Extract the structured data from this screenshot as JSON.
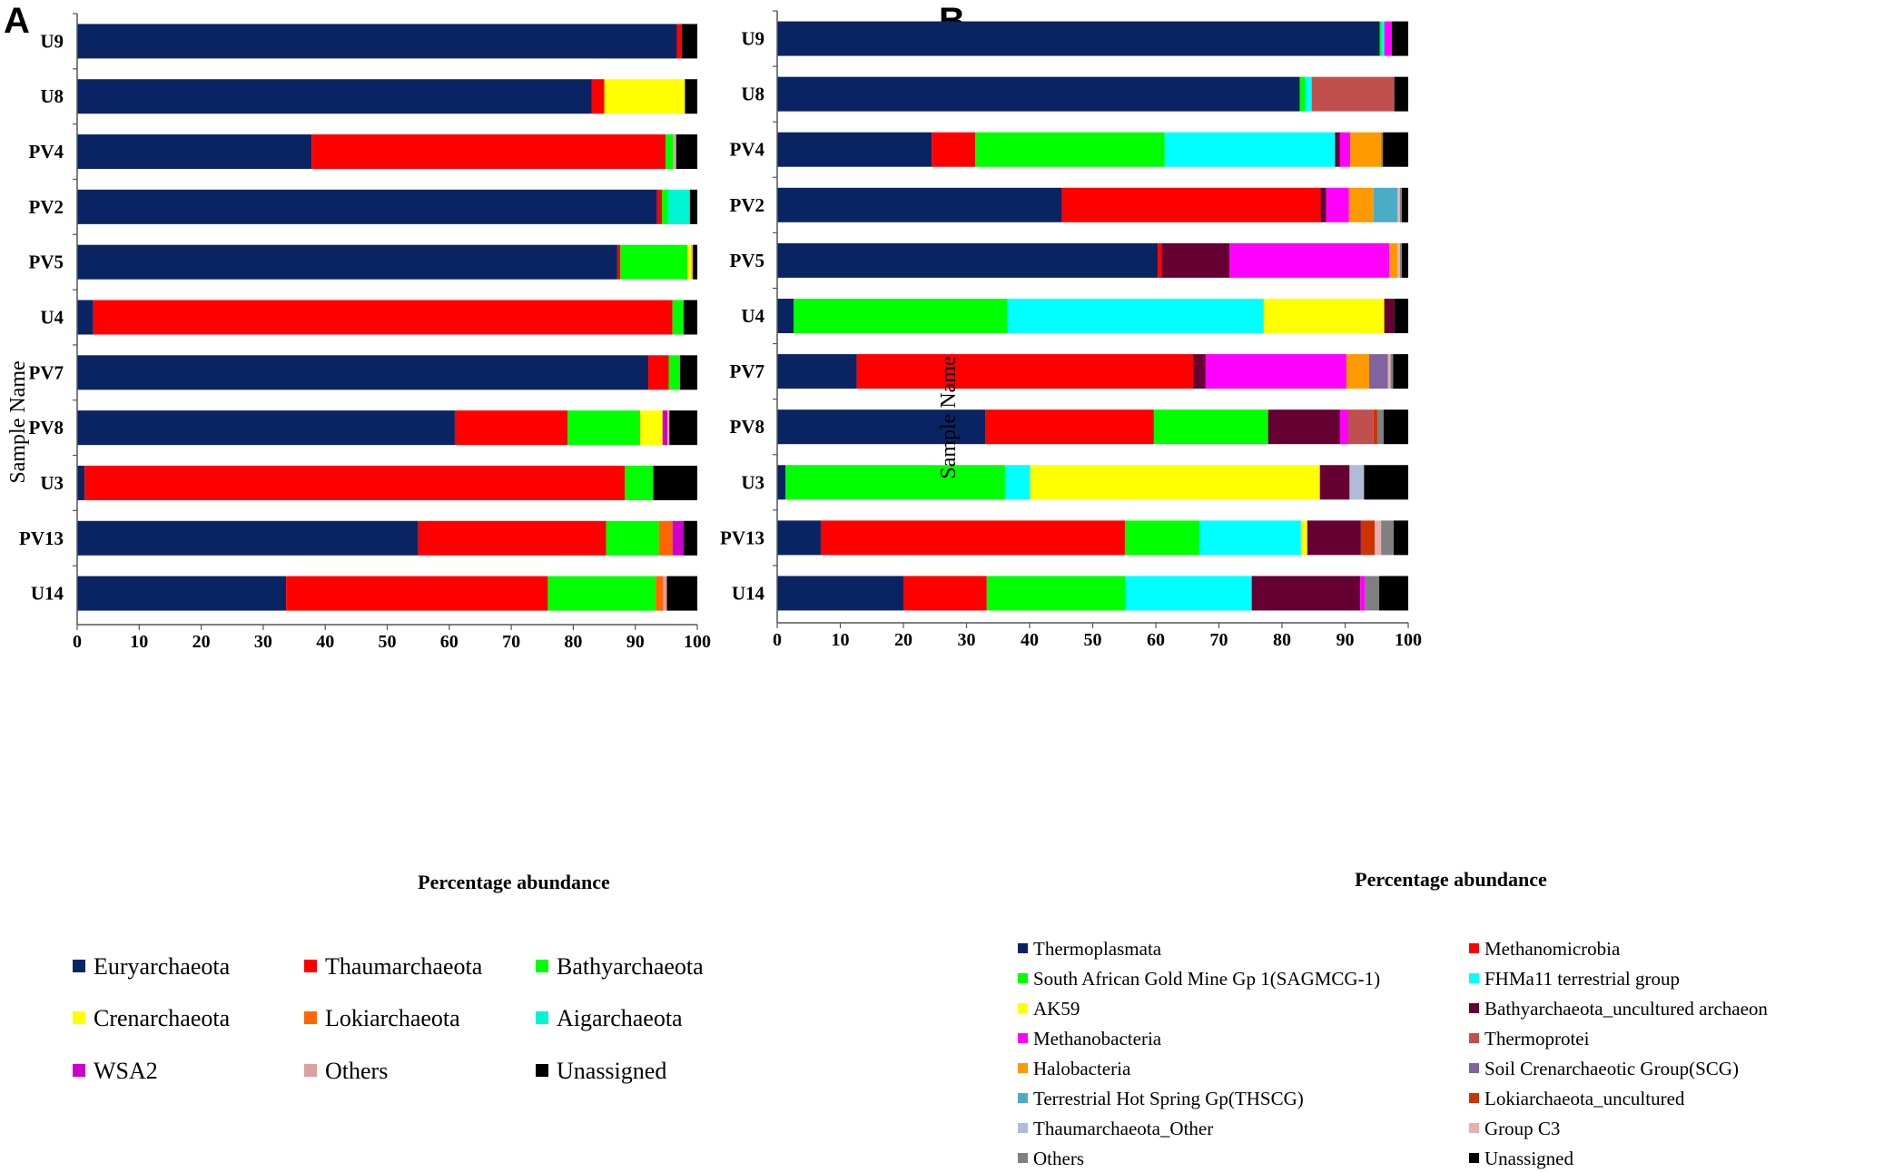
{
  "chart_data": [
    {
      "type": "bar",
      "orientation": "horizontal",
      "stacked": true,
      "panel_label": "A",
      "xlabel": "Percentage abundance",
      "ylabel": "Sample Name",
      "xlim": [
        0,
        100
      ],
      "xticks": [
        "0",
        "10",
        "20",
        "30",
        "40",
        "50",
        "60",
        "70",
        "80",
        "90",
        "100"
      ],
      "categories": [
        "U9",
        "U8",
        "PV4",
        "PV2",
        "PV5",
        "U4",
        "PV7",
        "PV8",
        "U3",
        "PV13",
        "U14"
      ],
      "series": [
        {
          "name": "Euryarchaeota",
          "color": "#0a2463",
          "values": [
            96.7,
            83.0,
            37.8,
            93.5,
            87.1,
            2.6,
            92.1,
            60.9,
            1.2,
            55.0,
            33.7
          ]
        },
        {
          "name": "Thaumarchaeota",
          "color": "#ff0000",
          "values": [
            0.8,
            2.0,
            57.1,
            0.8,
            0.5,
            93.4,
            3.3,
            18.2,
            87.1,
            30.3,
            42.2
          ]
        },
        {
          "name": "Bathyarchaeota",
          "color": "#00ff00",
          "values": [
            0.0,
            0.0,
            1.2,
            1.0,
            10.8,
            1.8,
            1.8,
            11.7,
            4.6,
            8.5,
            17.4
          ]
        },
        {
          "name": "Crenarchaeota",
          "color": "#ffff00",
          "values": [
            0.0,
            13.0,
            0.0,
            0.0,
            0.6,
            0.0,
            0.0,
            3.6,
            0.0,
            0.0,
            0.0
          ]
        },
        {
          "name": "Lokiarchaeota",
          "color": "#ff6600",
          "values": [
            0.0,
            0.0,
            0.0,
            0.0,
            0.0,
            0.0,
            0.0,
            0.0,
            0.0,
            2.2,
            1.2
          ]
        },
        {
          "name": "Aigarchaeota",
          "color": "#00f5d4",
          "values": [
            0.0,
            0.0,
            0.0,
            3.5,
            0.0,
            0.0,
            0.0,
            0.0,
            0.0,
            0.0,
            0.0
          ]
        },
        {
          "name": "WSA2",
          "color": "#cc00cc",
          "values": [
            0.0,
            0.0,
            0.0,
            0.0,
            0.0,
            0.0,
            0.0,
            0.8,
            0.0,
            1.8,
            0.0
          ]
        },
        {
          "name": "Others",
          "color": "#d8a0a0",
          "values": [
            0.0,
            0.0,
            0.5,
            0.0,
            0.3,
            0.0,
            0.0,
            0.3,
            0.0,
            0.0,
            0.6
          ]
        },
        {
          "name": "Unassigned",
          "color": "#000000",
          "values": [
            2.5,
            2.0,
            3.4,
            1.2,
            0.7,
            2.2,
            2.8,
            4.5,
            7.1,
            2.2,
            4.9
          ]
        }
      ]
    },
    {
      "type": "bar",
      "orientation": "horizontal",
      "stacked": true,
      "panel_label": "B",
      "xlabel": "Percentage abundance",
      "ylabel": "Sample Name",
      "xlim": [
        0,
        100
      ],
      "xticks": [
        "0",
        "10",
        "20",
        "30",
        "40",
        "50",
        "60",
        "70",
        "80",
        "90",
        "100"
      ],
      "categories": [
        "U9",
        "U8",
        "PV4",
        "PV2",
        "PV5",
        "U4",
        "PV7",
        "PV8",
        "U3",
        "PV13",
        "U14"
      ],
      "series": [
        {
          "name": "Thermoplasmata",
          "color": "#0a2463",
          "values": [
            95.5,
            82.8,
            24.5,
            45.1,
            60.3,
            2.6,
            12.6,
            33.0,
            1.3,
            6.9,
            20.0
          ]
        },
        {
          "name": "Methanomicrobia",
          "color": "#ff0000",
          "values": [
            0.0,
            0.0,
            6.9,
            41.0,
            0.6,
            0.0,
            53.3,
            26.7,
            0.0,
            48.2,
            13.2
          ]
        },
        {
          "name": "South African Gold Mine Gp 1(SAGMCG-1)",
          "color": "#00ff00",
          "values": [
            0.3,
            0.9,
            30.0,
            0.0,
            0.0,
            33.9,
            0.0,
            18.1,
            34.8,
            11.8,
            22.0
          ]
        },
        {
          "name": "FHMa11 terrestrial group",
          "color": "#00ffff",
          "values": [
            0.4,
            1.0,
            27.0,
            0.0,
            0.0,
            40.6,
            0.0,
            0.0,
            4.0,
            16.1,
            20.0
          ]
        },
        {
          "name": "AK59",
          "color": "#ffff00",
          "values": [
            0.0,
            0.0,
            0.0,
            0.0,
            0.0,
            19.1,
            0.0,
            0.0,
            45.9,
            1.0,
            0.0
          ]
        },
        {
          "name": "Bathyarchaeota_uncultured archaeon",
          "color": "#660033",
          "values": [
            0.0,
            0.0,
            0.8,
            0.9,
            10.8,
            1.6,
            2.0,
            11.4,
            4.7,
            8.5,
            17.2
          ]
        },
        {
          "name": "Methanobacteria",
          "color": "#ff00ff",
          "values": [
            1.2,
            0.0,
            1.6,
            3.6,
            25.3,
            0.0,
            22.3,
            1.3,
            0.0,
            0.0,
            0.7
          ]
        },
        {
          "name": "Thermoprotei",
          "color": "#c0504d",
          "values": [
            0.0,
            13.1,
            0.0,
            0.0,
            0.0,
            0.0,
            0.0,
            4.0,
            0.0,
            0.0,
            0.0
          ]
        },
        {
          "name": "Halobacteria",
          "color": "#ff9900",
          "values": [
            0.0,
            0.0,
            4.9,
            3.9,
            1.3,
            0.0,
            3.6,
            0.0,
            0.0,
            0.0,
            0.0
          ]
        },
        {
          "name": "Soil Crenarchaeotic Group(SCG)",
          "color": "#8064a2",
          "values": [
            0.0,
            0.0,
            0.0,
            0.0,
            0.0,
            0.0,
            3.0,
            0.0,
            0.0,
            0.0,
            0.0
          ]
        },
        {
          "name": "Terrestrial Hot Spring Gp(THSCG)",
          "color": "#4bacc6",
          "values": [
            0.0,
            0.0,
            0.0,
            3.8,
            0.0,
            0.0,
            0.0,
            0.0,
            0.0,
            0.0,
            0.0
          ]
        },
        {
          "name": "Lokiarchaeota_uncultured",
          "color": "#cc3300",
          "values": [
            0.0,
            0.0,
            0.0,
            0.0,
            0.0,
            0.0,
            0.0,
            0.6,
            0.0,
            2.2,
            0.0
          ]
        },
        {
          "name": "Thaumarchaeota_Other",
          "color": "#b0bcd8",
          "values": [
            0.0,
            0.0,
            0.0,
            0.0,
            0.0,
            0.0,
            0.0,
            0.0,
            2.3,
            0.0,
            0.0
          ]
        },
        {
          "name": "Group C3",
          "color": "#e6b0b0",
          "values": [
            0.0,
            0.0,
            0.0,
            0.4,
            0.4,
            0.0,
            0.4,
            0.0,
            0.0,
            1.0,
            0.0
          ]
        },
        {
          "name": "Others",
          "color": "#808080",
          "values": [
            0.0,
            0.0,
            0.3,
            0.3,
            0.3,
            0.0,
            0.4,
            1.0,
            0.0,
            2.0,
            2.3
          ]
        },
        {
          "name": "Unassigned",
          "color": "#000000",
          "values": [
            2.6,
            2.2,
            4.0,
            1.0,
            1.0,
            2.2,
            2.4,
            3.9,
            7.0,
            2.3,
            4.6
          ]
        }
      ]
    }
  ]
}
